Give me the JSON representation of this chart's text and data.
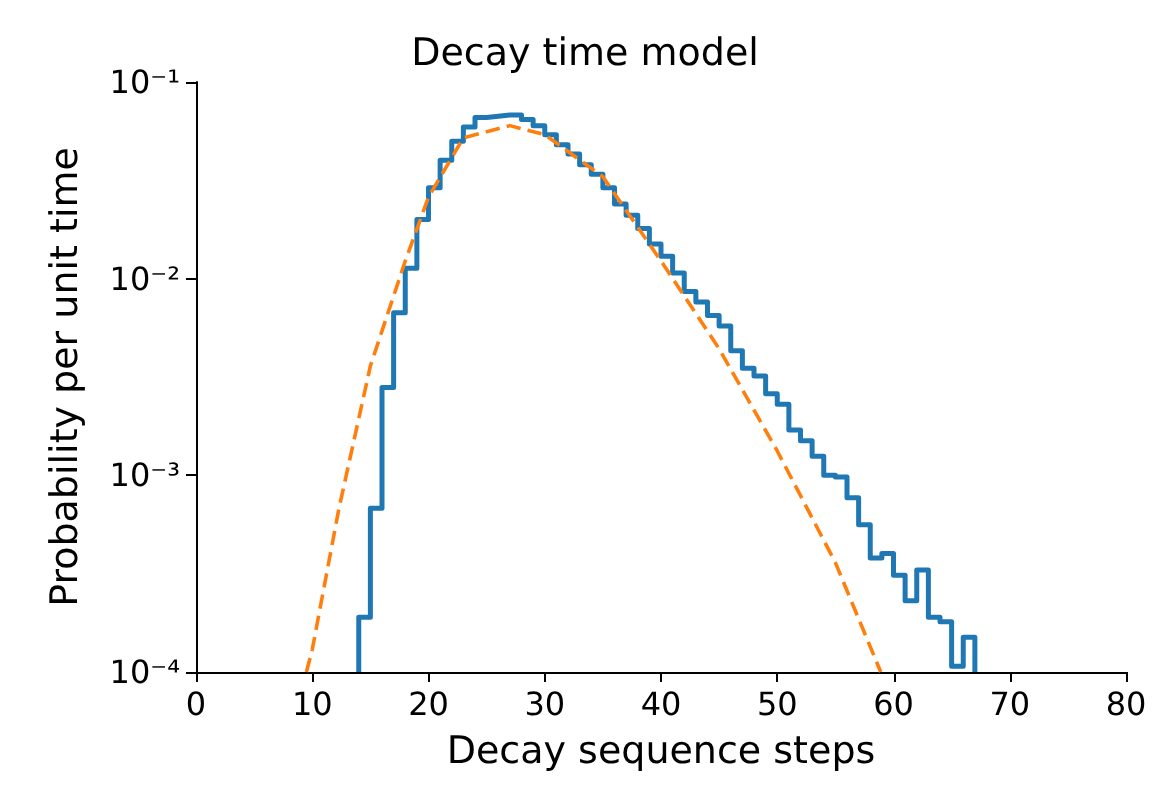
{
  "chart_data": {
    "type": "histogram",
    "title": "Decay time model",
    "xlabel": "Decay sequence steps",
    "ylabel": "Probability per unit time",
    "bins": [
      14,
      15,
      16,
      17,
      18,
      19,
      20,
      21,
      22,
      23,
      24,
      25,
      26,
      27,
      28,
      29,
      30,
      31,
      32,
      33,
      34,
      35,
      36,
      37,
      38,
      39,
      40,
      41,
      42,
      43,
      44,
      45,
      46,
      47,
      48,
      49,
      50,
      51,
      52,
      53,
      54,
      55,
      56,
      57,
      58,
      59,
      60,
      61,
      62,
      63,
      64,
      65,
      66,
      67
    ],
    "values": [
      0.00019,
      0.00068,
      0.0028,
      0.0067,
      0.0113,
      0.02,
      0.029,
      0.04,
      0.05,
      0.059,
      0.066,
      0.067,
      0.068,
      0.068,
      0.0645,
      0.06,
      0.054,
      0.048,
      0.043,
      0.038,
      0.034,
      0.029,
      0.024,
      0.021,
      0.018,
      0.015,
      0.013,
      0.0107,
      0.0086,
      0.0076,
      0.0065,
      0.00575,
      0.0043,
      0.0035,
      0.0032,
      0.0026,
      0.0023,
      0.0017,
      0.0015,
      0.00125,
      0.001,
      0.00098,
      0.00077,
      0.00056,
      0.00038,
      0.0004,
      0.00031,
      0.00023,
      0.00033,
      0.00019,
      0.00018,
      0.000107,
      0.00015
    ],
    "color": "#1f77b4",
    "series": [
      {
        "type": "line",
        "color": "#ff7f0e",
        "line_style": "dashed",
        "x": [
          9.5,
          10,
          12.3,
          15,
          18,
          20,
          23,
          27,
          30,
          35,
          40,
          45,
          50,
          55,
          58.9
        ],
        "values": [
          0.0001,
          0.00013,
          0.00068,
          0.0036,
          0.0123,
          0.026,
          0.052,
          0.06,
          0.054,
          0.033,
          0.0123,
          0.0044,
          0.00133,
          0.00036,
          0.0001
        ]
      }
    ],
    "log": "y",
    "xlim": [
      0,
      80
    ],
    "xticks": [
      0,
      10,
      20,
      30,
      40,
      50,
      60,
      70,
      80
    ],
    "ylim": [
      0.0001,
      0.1
    ],
    "yticks": [
      {
        "value": 0.0001,
        "label": "10⁻⁴"
      },
      {
        "value": 0.001,
        "label": "10⁻³"
      },
      {
        "value": 0.01,
        "label": "10⁻²"
      },
      {
        "value": 0.1,
        "label": "10⁻¹"
      }
    ],
    "grid": false
  }
}
